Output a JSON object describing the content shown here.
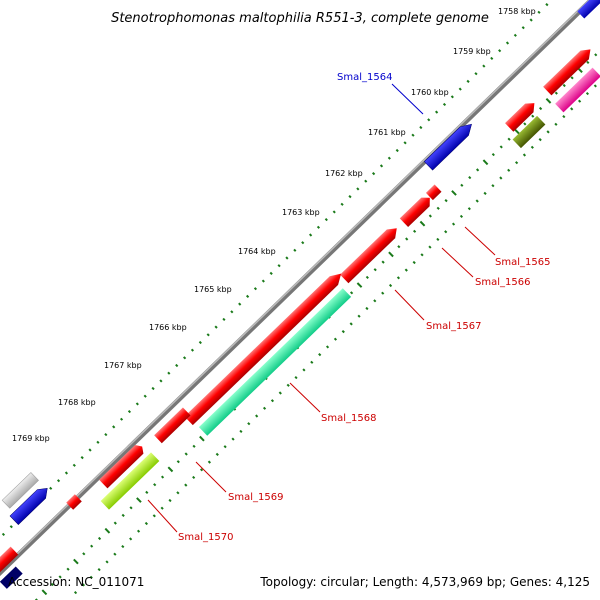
{
  "title": "Stenotrophomonas maltophilia R551-3, complete genome",
  "ticks": [
    {
      "label": "1758 kbp"
    },
    {
      "label": "1759 kbp"
    },
    {
      "label": "1760 kbp"
    },
    {
      "label": "1761 kbp"
    },
    {
      "label": "1762 kbp"
    },
    {
      "label": "1763 kbp"
    },
    {
      "label": "1764 kbp"
    },
    {
      "label": "1765 kbp"
    },
    {
      "label": "1766 kbp"
    },
    {
      "label": "1767 kbp"
    },
    {
      "label": "1768 kbp"
    },
    {
      "label": "1769 kbp"
    }
  ],
  "genes": [
    {
      "label": "Smal_1564",
      "color": "#0000cc"
    },
    {
      "label": "Smal_1565",
      "color": "#cc0000"
    },
    {
      "label": "Smal_1566",
      "color": "#cc0000"
    },
    {
      "label": "Smal_1567",
      "color": "#cc0000"
    },
    {
      "label": "Smal_1568",
      "color": "#cc0000"
    },
    {
      "label": "Smal_1569",
      "color": "#cc0000"
    },
    {
      "label": "Smal_1570",
      "color": "#cc0000"
    }
  ],
  "footer": {
    "accession": "Accession: NC_011071",
    "summary": "Topology: circular; Length: 4,573,969 bp; Genes: 4,125"
  },
  "colors": {
    "backbone": "#888888",
    "tick_dots": "#1a7a1a",
    "forward_gene": "#ff0000",
    "reverse_gene": "#ff0000",
    "blue_gene": "#0000dd",
    "cyan_gene": "#22ffaa",
    "olive_gene": "#669900",
    "lime_gene": "#bbff33",
    "magenta_gene": "#ff33aa",
    "gray_gene": "#cccccc"
  }
}
